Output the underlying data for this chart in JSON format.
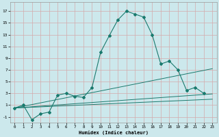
{
  "xlabel": "Humidex (Indice chaleur)",
  "bg_color": "#cce8ec",
  "grid_color": "#e8c8c8",
  "line_color": "#1a7a6e",
  "xlim": [
    -0.5,
    23.5
  ],
  "ylim": [
    -2,
    18.5
  ],
  "xticks": [
    0,
    1,
    2,
    3,
    4,
    5,
    6,
    7,
    8,
    9,
    10,
    11,
    12,
    13,
    14,
    15,
    16,
    17,
    18,
    19,
    20,
    21,
    22,
    23
  ],
  "yticks": [
    -1,
    1,
    3,
    5,
    7,
    9,
    11,
    13,
    15,
    17
  ],
  "main_x": [
    0,
    1,
    2,
    3,
    4,
    5,
    6,
    7,
    8,
    9,
    10,
    11,
    12,
    13,
    14,
    15,
    16,
    17,
    18,
    19,
    20,
    21,
    22
  ],
  "main_y": [
    0.5,
    1.0,
    -1.5,
    -0.5,
    -0.2,
    2.7,
    3.0,
    2.5,
    2.3,
    4.0,
    10.0,
    12.8,
    15.5,
    17.0,
    16.5,
    16.0,
    13.0,
    8.0,
    8.5,
    7.0,
    3.5,
    4.0,
    3.0
  ],
  "line2_x": [
    0,
    23
  ],
  "line2_y": [
    0.5,
    7.2
  ],
  "line3_x": [
    0,
    23
  ],
  "line3_y": [
    0.5,
    2.9
  ],
  "line4_x": [
    0,
    23
  ],
  "line4_y": [
    0.5,
    2.0
  ]
}
